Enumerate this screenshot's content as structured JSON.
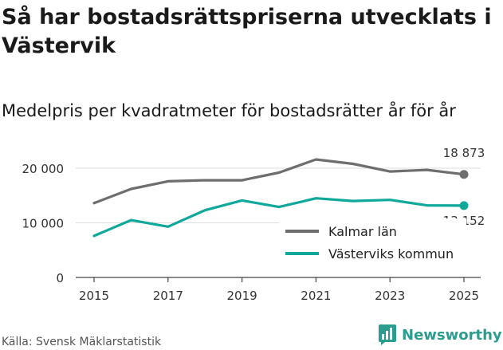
{
  "title": "Så har bostadsrättspriserna utvecklats i Västervik",
  "subtitle": "Medelpris per kvadratmeter för bostadsrätter år för år",
  "source": "Källa: Svensk Mäklarstatistik",
  "brand": "Newsworthy",
  "colors": {
    "kalmar": "#6e6e6e",
    "vastervik": "#0fa89a",
    "grid": "#dddddd",
    "brand": "#2a9d8f"
  },
  "chart_data": {
    "type": "line",
    "x": [
      2015,
      2016,
      2017,
      2018,
      2019,
      2020,
      2021,
      2022,
      2023,
      2024,
      2025
    ],
    "series": [
      {
        "name": "Kalmar län",
        "values": [
          13600,
          16200,
          17600,
          17800,
          17800,
          19200,
          21600,
          20800,
          19400,
          19700,
          18873
        ],
        "end_label": "18 873"
      },
      {
        "name": "Västerviks kommun",
        "values": [
          7600,
          10500,
          9300,
          12300,
          14100,
          12900,
          14500,
          14000,
          14200,
          13200,
          13152
        ],
        "end_label": "13 152"
      }
    ],
    "y_ticks": [
      0,
      10000,
      20000
    ],
    "y_tick_labels": [
      "0",
      "10 000",
      "20 000"
    ],
    "x_ticks": [
      2015,
      2017,
      2019,
      2021,
      2023,
      2025
    ],
    "x_tick_labels": [
      "2015",
      "2017",
      "2019",
      "2021",
      "2023",
      "2025"
    ],
    "ylim": [
      0,
      20000
    ],
    "legend": "bottom-right"
  }
}
